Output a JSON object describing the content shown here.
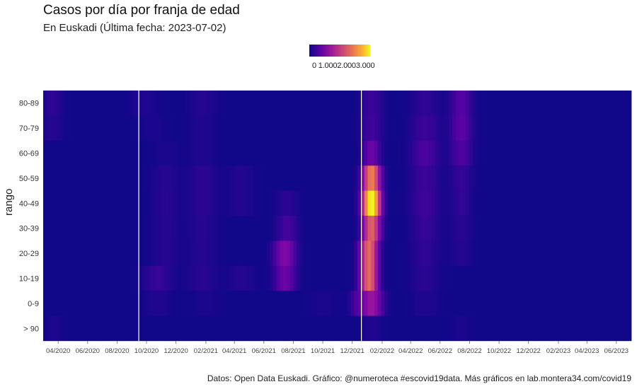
{
  "chart_data": {
    "type": "heatmap",
    "title": "Casos por día por franja de edad",
    "subtitle": "En Euskadi  (Última fecha: 2023-07-02)",
    "ylabel": "rango",
    "xlabel": "",
    "legend": {
      "position": "top",
      "labels": [
        "0",
        "1.000",
        "2.000",
        "3.000"
      ],
      "range": [
        0,
        3000
      ]
    },
    "y_categories": [
      "80-89",
      "70-79",
      "60-69",
      "50-59",
      "40-49",
      "30-39",
      "20-29",
      "10-19",
      "0-9",
      "> 90"
    ],
    "x_range": [
      "2020-03-01",
      "2023-07-02"
    ],
    "x_ticks": [
      "04/2020",
      "06/2020",
      "08/2020",
      "10/2020",
      "12/2020",
      "02/2021",
      "04/2021",
      "06/2021",
      "08/2021",
      "10/2021",
      "12/2021",
      "02/2022",
      "04/2022",
      "06/2022",
      "08/2022",
      "10/2022",
      "12/2022",
      "02/2023",
      "04/2023",
      "06/2023"
    ],
    "vertical_lines": [
      "2020-09-15",
      "2021-12-20"
    ],
    "rows": [
      {
        "name": "80-89",
        "peaks": [
          [
            "2020-03-20",
            15,
            120
          ],
          [
            "2020-09-25",
            20,
            60
          ],
          [
            "2021-01-25",
            20,
            80
          ],
          [
            "2022-01-10",
            15,
            180
          ],
          [
            "2022-05-01",
            20,
            120
          ],
          [
            "2022-07-15",
            15,
            300
          ]
        ]
      },
      {
        "name": "70-79",
        "peaks": [
          [
            "2020-03-20",
            15,
            80
          ],
          [
            "2020-10-15",
            20,
            40
          ],
          [
            "2021-01-25",
            20,
            60
          ],
          [
            "2022-01-10",
            15,
            200
          ],
          [
            "2022-05-01",
            20,
            180
          ],
          [
            "2022-07-15",
            15,
            350
          ]
        ]
      },
      {
        "name": "60-69",
        "peaks": [
          [
            "2020-11-10",
            20,
            40
          ],
          [
            "2021-01-25",
            20,
            60
          ],
          [
            "2022-01-10",
            12,
            450
          ],
          [
            "2022-05-01",
            20,
            250
          ],
          [
            "2022-07-15",
            15,
            280
          ]
        ]
      },
      {
        "name": "50-59",
        "peaks": [
          [
            "2020-11-10",
            20,
            80
          ],
          [
            "2021-01-25",
            20,
            110
          ],
          [
            "2021-04-15",
            20,
            70
          ],
          [
            "2022-01-10",
            12,
            1900
          ],
          [
            "2022-05-01",
            20,
            180
          ],
          [
            "2022-07-15",
            15,
            150
          ]
        ]
      },
      {
        "name": "40-49",
        "peaks": [
          [
            "2020-11-10",
            20,
            90
          ],
          [
            "2021-01-25",
            20,
            110
          ],
          [
            "2021-04-15",
            20,
            70
          ],
          [
            "2021-07-20",
            15,
            110
          ],
          [
            "2022-01-10",
            12,
            3000
          ],
          [
            "2022-05-01",
            20,
            200
          ],
          [
            "2022-07-15",
            15,
            130
          ]
        ]
      },
      {
        "name": "30-39",
        "peaks": [
          [
            "2020-11-10",
            20,
            80
          ],
          [
            "2021-01-25",
            20,
            90
          ],
          [
            "2021-07-20",
            15,
            220
          ],
          [
            "2022-01-10",
            12,
            1600
          ],
          [
            "2022-05-01",
            20,
            150
          ],
          [
            "2022-07-15",
            15,
            100
          ]
        ]
      },
      {
        "name": "20-29",
        "peaks": [
          [
            "2020-11-10",
            20,
            80
          ],
          [
            "2021-01-25",
            20,
            80
          ],
          [
            "2021-07-15",
            15,
            600
          ],
          [
            "2022-01-05",
            12,
            1700
          ],
          [
            "2022-05-01",
            20,
            120
          ],
          [
            "2022-07-15",
            15,
            80
          ]
        ]
      },
      {
        "name": "10-19",
        "peaks": [
          [
            "2020-10-25",
            20,
            160
          ],
          [
            "2021-01-25",
            20,
            100
          ],
          [
            "2021-04-15",
            20,
            80
          ],
          [
            "2021-07-15",
            15,
            450
          ],
          [
            "2022-01-05",
            12,
            1700
          ],
          [
            "2022-05-01",
            20,
            100
          ]
        ]
      },
      {
        "name": "0-9",
        "peaks": [
          [
            "2020-10-25",
            20,
            60
          ],
          [
            "2021-02-01",
            20,
            40
          ],
          [
            "2021-10-01",
            20,
            40
          ],
          [
            "2021-12-10",
            10,
            200
          ],
          [
            "2022-01-10",
            15,
            800
          ],
          [
            "2022-05-01",
            20,
            60
          ]
        ]
      },
      {
        "name": "> 90",
        "peaks": [
          [
            "2020-03-25",
            12,
            50
          ],
          [
            "2022-01-10",
            15,
            60
          ],
          [
            "2022-07-15",
            15,
            40
          ]
        ]
      }
    ]
  },
  "caption": "Datos: Open Data Euskadi. Gráfico: @numeroteca #escovid19data. Más gráficos en lab.montera34.com/covid19"
}
